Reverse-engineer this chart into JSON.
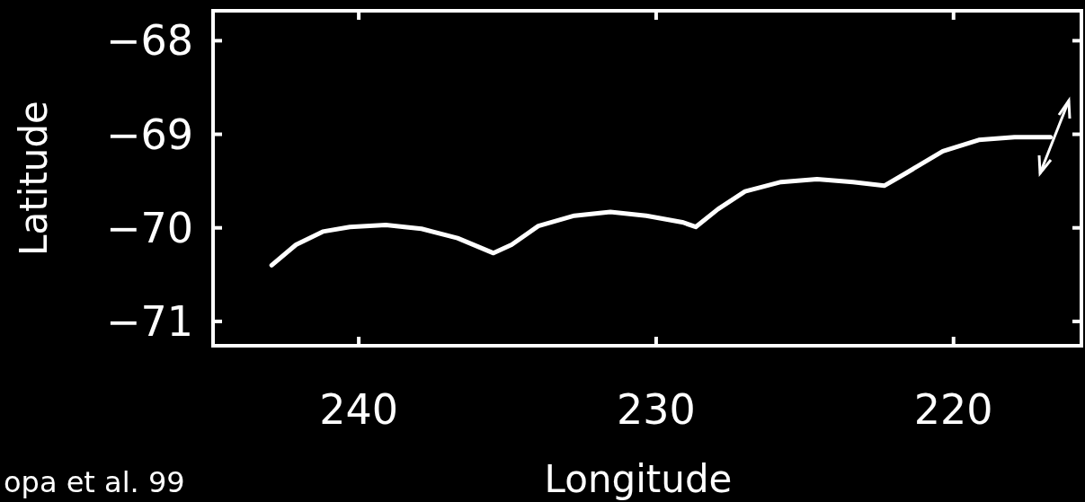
{
  "chart_data": {
    "type": "line",
    "xlabel": "Longitude",
    "ylabel": "Latitude",
    "x": [
      242.93,
      242.11,
      241.21,
      240.3,
      239.09,
      237.89,
      236.68,
      235.47,
      234.86,
      233.96,
      232.75,
      231.54,
      230.33,
      229.12,
      228.67,
      227.92,
      227.01,
      225.8,
      224.59,
      223.38,
      222.33,
      221.57,
      220.36,
      219.15,
      217.95,
      216.74
    ],
    "series": [
      {
        "color": "#ffffff",
        "values": [
          -70.4,
          -70.18,
          -70.04,
          -69.99,
          -69.97,
          -70.01,
          -70.11,
          -70.27,
          -70.18,
          -69.98,
          -69.87,
          -69.83,
          -69.87,
          -69.94,
          -69.99,
          -69.8,
          -69.61,
          -69.51,
          -69.48,
          -69.51,
          -69.55,
          -69.41,
          -69.18,
          -69.06,
          -69.03,
          -69.03
        ]
      }
    ],
    "xlim": [
      244.9,
      215.7
    ],
    "xticks": [
      240,
      230,
      220
    ],
    "ylim": [
      -71.26,
      -67.68
    ],
    "yticks": [
      {
        "value": -68,
        "label": "−68"
      },
      {
        "value": -69,
        "label": "−69"
      },
      {
        "value": -70,
        "label": "−70"
      },
      {
        "value": -71,
        "label": "−71"
      }
    ],
    "grid": false,
    "marker": "none",
    "line_style": "solid",
    "annotations": [
      "opa et al. 99"
    ]
  }
}
